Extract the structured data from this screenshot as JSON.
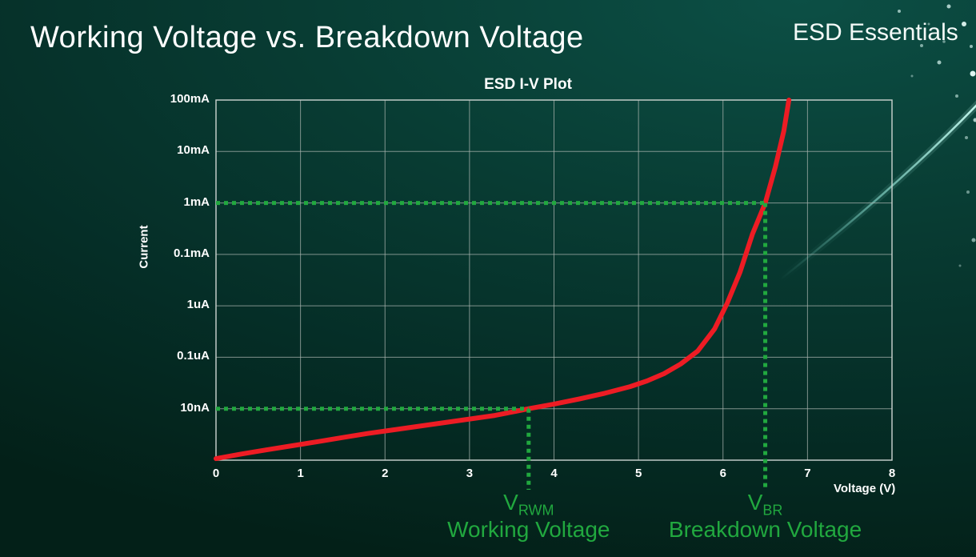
{
  "page": {
    "title": "Working Voltage vs. Breakdown Voltage",
    "brand": "ESD Essentials"
  },
  "chart_data": {
    "type": "line",
    "title": "ESD I-V Plot",
    "xlabel": "Voltage (V)",
    "ylabel": "Current",
    "x_ticks": [
      0,
      1,
      2,
      3,
      4,
      5,
      6,
      7,
      8
    ],
    "xlim": [
      0,
      8
    ],
    "y_scale": "log-decades",
    "y_tick_labels": [
      "100mA",
      "10mA",
      "1mA",
      "0.1mA",
      "1uA",
      "0.1uA",
      "10nA"
    ],
    "grid": true,
    "legend": "none",
    "series": [
      {
        "name": "ESD I-V curve",
        "color": "#ed1c24",
        "points": [
          [
            0,
            0.03
          ],
          [
            0.3,
            0.12
          ],
          [
            0.6,
            0.2
          ],
          [
            0.9,
            0.28
          ],
          [
            1.2,
            0.36
          ],
          [
            1.5,
            0.44
          ],
          [
            1.8,
            0.52
          ],
          [
            2.1,
            0.59
          ],
          [
            2.4,
            0.66
          ],
          [
            2.7,
            0.73
          ],
          [
            3.0,
            0.8
          ],
          [
            3.3,
            0.87
          ],
          [
            3.55,
            0.95
          ],
          [
            3.7,
            1.0
          ],
          [
            4.0,
            1.09
          ],
          [
            4.3,
            1.19
          ],
          [
            4.6,
            1.3
          ],
          [
            4.9,
            1.43
          ],
          [
            5.1,
            1.54
          ],
          [
            5.3,
            1.68
          ],
          [
            5.5,
            1.87
          ],
          [
            5.7,
            2.12
          ],
          [
            5.9,
            2.55
          ],
          [
            6.05,
            3.05
          ],
          [
            6.2,
            3.65
          ],
          [
            6.35,
            4.4
          ],
          [
            6.5,
            5.0
          ],
          [
            6.62,
            5.7
          ],
          [
            6.72,
            6.4
          ],
          [
            6.78,
            7.0
          ]
        ]
      }
    ],
    "annotations": [
      {
        "id": "vrwm",
        "symbol": "V",
        "subscript": "RWM",
        "caption": "Working Voltage",
        "voltage": 3.7,
        "level": 1,
        "current_level_label": "10nA"
      },
      {
        "id": "vbr",
        "symbol": "V",
        "subscript": "BR",
        "caption": "Breakdown Voltage",
        "voltage": 6.5,
        "level": 5,
        "current_level_label": "1mA"
      }
    ],
    "colors": {
      "accent_green": "#21a83f",
      "curve_red": "#ed1c24",
      "grid_gray": "#a9b3ae",
      "text_white": "#ffffff"
    }
  }
}
